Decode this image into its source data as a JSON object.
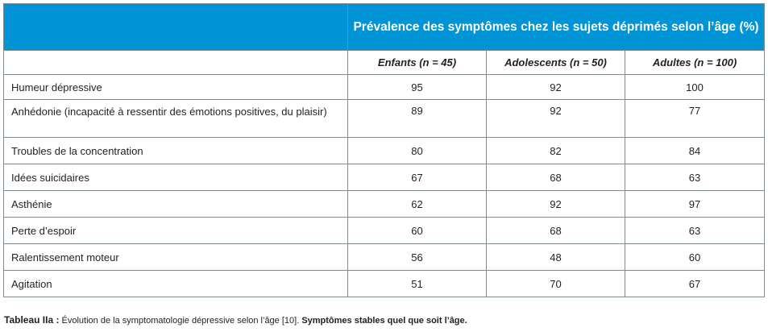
{
  "header": {
    "title": "Prévalence des symptômes chez les sujets déprimés selon l’âge (%)",
    "columns": [
      "Enfants (n = 45)",
      "Adolescents (n = 50)",
      "Adultes (n = 100)"
    ]
  },
  "rows": [
    {
      "label": "Humeur dépressive",
      "values": [
        "95",
        "92",
        "100"
      ]
    },
    {
      "label": "Anhédonie (incapacité à ressentir des émotions positives, du plaisir)",
      "values": [
        "89",
        "92",
        "77"
      ]
    },
    {
      "label": "Troubles de la concentration",
      "values": [
        "80",
        "82",
        "84"
      ]
    },
    {
      "label": "Idées suicidaires",
      "values": [
        "67",
        "68",
        "63"
      ]
    },
    {
      "label": "Asthénie",
      "values": [
        "62",
        "92",
        "97"
      ]
    },
    {
      "label": "Perte d’espoir",
      "values": [
        "60",
        "68",
        "63"
      ]
    },
    {
      "label": "Ralentissement moteur",
      "values": [
        "56",
        "48",
        "60"
      ]
    },
    {
      "label": "Agitation",
      "values": [
        "51",
        "70",
        "67"
      ]
    }
  ],
  "caption": {
    "lead": "Tableau IIa :",
    "text": " Évolution de la symptomatologie dépressive selon l’âge [10]. ",
    "emphasis": "Symptômes stables quel que soit l’âge."
  }
}
